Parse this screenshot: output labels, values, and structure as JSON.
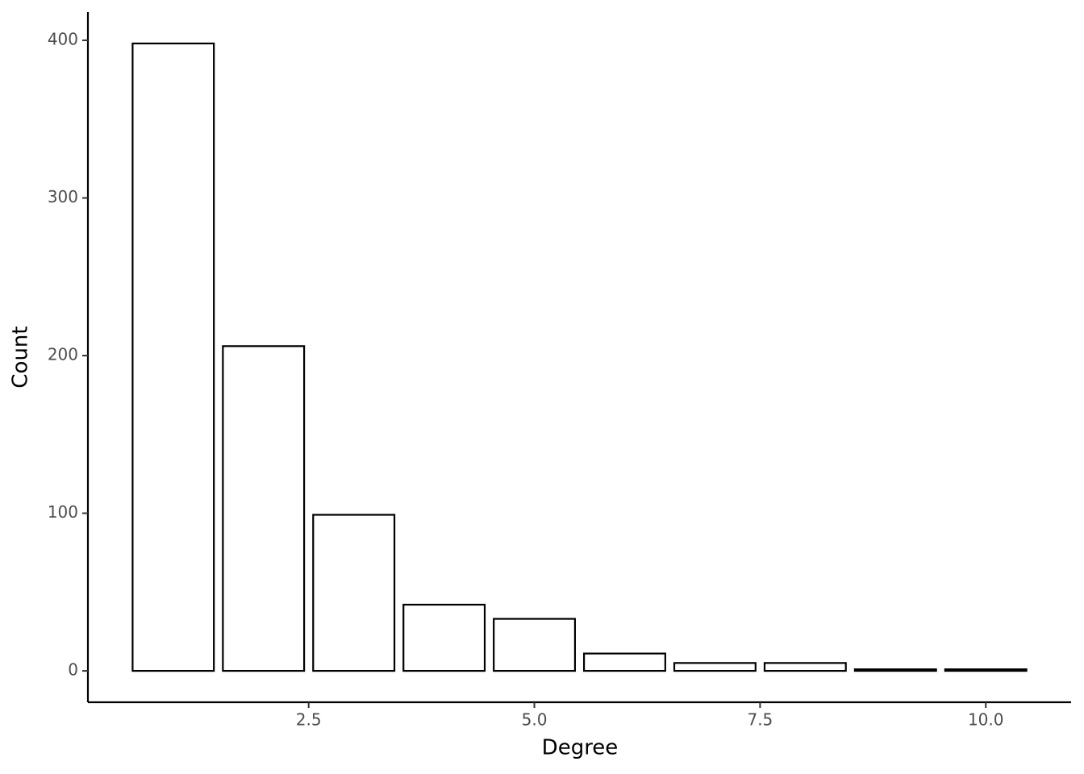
{
  "chart_data": {
    "type": "bar",
    "x": [
      1,
      2,
      3,
      4,
      5,
      6,
      7,
      8,
      9,
      10
    ],
    "values": [
      398,
      206,
      99,
      42,
      33,
      11,
      5,
      5,
      1,
      1
    ],
    "color": "#ffffff",
    "edgecolor": "#000000",
    "xlabel": "Degree",
    "ylabel": "Count",
    "xlim": [
      0.055,
      10.945
    ],
    "xticks": [
      2.5,
      {
        "value": 5,
        "label": "5.0"
      },
      7.5,
      {
        "value": 10,
        "label": "10.0"
      }
    ],
    "ylim": [
      -19.9,
      417.9
    ],
    "yticks": [
      0,
      100,
      200,
      300,
      400
    ],
    "grid": false
  }
}
